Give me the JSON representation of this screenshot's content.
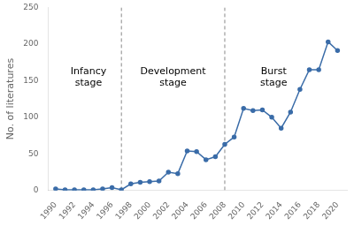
{
  "chart_data": {
    "type": "line",
    "x": [
      1990,
      1991,
      1992,
      1993,
      1994,
      1995,
      1996,
      1997,
      1998,
      1999,
      2000,
      2001,
      2002,
      2003,
      2004,
      2005,
      2006,
      2007,
      2008,
      2009,
      2010,
      2011,
      2012,
      2013,
      2014,
      2015,
      2016,
      2017,
      2018,
      2019,
      2020
    ],
    "values": [
      2,
      1,
      1,
      1,
      1,
      2,
      4,
      1,
      9,
      11,
      12,
      13,
      25,
      23,
      54,
      53,
      42,
      46,
      63,
      73,
      112,
      109,
      110,
      100,
      85,
      107,
      138,
      165,
      165,
      203,
      191
    ],
    "color": "#3a6ca8",
    "marker": "circle",
    "ylabel": "No. of literatures",
    "xlim": [
      1989.2,
      2021.0
    ],
    "xticks": [
      1990,
      1992,
      1994,
      1996,
      1998,
      2000,
      2002,
      2004,
      2006,
      2008,
      2010,
      2012,
      2014,
      2016,
      2018,
      2020
    ],
    "ylim": [
      0,
      250
    ],
    "yticks": [
      0,
      50,
      100,
      150,
      200,
      250
    ],
    "grid": false,
    "vlines": [
      1997,
      2008
    ],
    "annotations": [
      {
        "text": "Infancy\nstage",
        "x": 1993.5,
        "y": 155
      },
      {
        "text": "Development\nstage",
        "x": 2002.5,
        "y": 155
      },
      {
        "text": "Burst\nstage",
        "x": 2013.2,
        "y": 155
      }
    ]
  }
}
